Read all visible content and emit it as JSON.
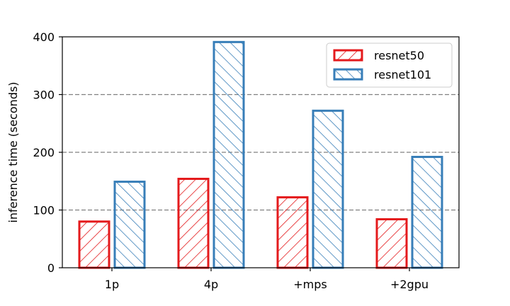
{
  "chart_data": {
    "type": "bar",
    "title": "",
    "xlabel": "",
    "ylabel": "inference time (seconds)",
    "categories": [
      "1p",
      "4p",
      "+mps",
      "+2gpu"
    ],
    "series": [
      {
        "name": "resnet50",
        "values": [
          80,
          154,
          122,
          84
        ],
        "color": "#e41a1c",
        "hatch": "forward-diagonal"
      },
      {
        "name": "resnet101",
        "values": [
          149,
          391,
          272,
          192
        ],
        "color": "#377eb8",
        "hatch": "back-diagonal"
      }
    ],
    "ylim": [
      0,
      400
    ],
    "yticks": [
      0,
      100,
      200,
      300,
      400
    ],
    "gridlines": [
      100,
      200,
      300
    ],
    "grid": "horizontal dashed",
    "legend_position": "upper-right"
  }
}
